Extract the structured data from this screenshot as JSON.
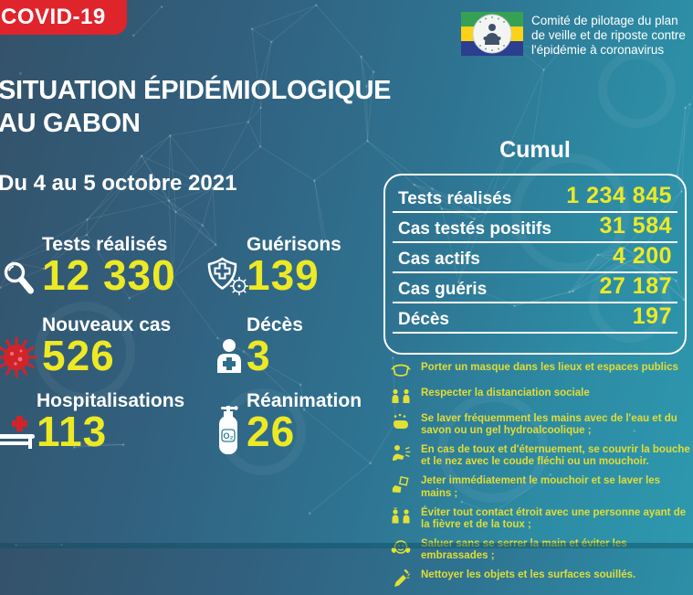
{
  "banner": {
    "label": "COVID-19"
  },
  "org": {
    "line1": "Comité de pilotage du plan",
    "line2": "de veille et de riposte contre",
    "line3": "l'épidémie à coronavirus",
    "flag": "gabon-flag"
  },
  "title": {
    "line1": "SITUATION ÉPIDÉMIOLOGIQUE",
    "line2": "AU GABON"
  },
  "period": "Du 4 au 5 octobre 2021",
  "daily_stats": [
    {
      "label": "Tests réalisés",
      "value": "12 330",
      "icon": "magnifier-icon"
    },
    {
      "label": "Guérisons",
      "value": "139",
      "icon": "shield-cross-virus-icon"
    },
    {
      "label": "Nouveaux cas",
      "value": "526",
      "icon": "virus-icon"
    },
    {
      "label": "Décès",
      "value": "3",
      "icon": "person-cross-icon"
    },
    {
      "label": "Hospitalisations",
      "value": "113",
      "icon": "hospital-bed-icon"
    },
    {
      "label": "Réanimation",
      "value": "26",
      "icon": "oxygen-tank-icon"
    }
  ],
  "cumulative": {
    "title": "Cumul",
    "rows": [
      {
        "label": "Tests réalisés",
        "value": "1 234 845"
      },
      {
        "label": "Cas testés positifs",
        "value": "31 584"
      },
      {
        "label": "Cas actifs",
        "value": "4 200"
      },
      {
        "label": "Cas guéris",
        "value": "27 187"
      },
      {
        "label": "Décès",
        "value": "197"
      }
    ]
  },
  "guidelines": [
    {
      "icon": "mask-icon",
      "text": "Porter un masque dans les lieux et espaces publics"
    },
    {
      "icon": "distancing-icon",
      "text": "Respecter la distanciation sociale"
    },
    {
      "icon": "wash-hands-icon",
      "text": "Se laver fréquemment les mains avec de l'eau et du savon ou un gel hydroalcoolique ;"
    },
    {
      "icon": "cough-elbow-icon",
      "text": "En cas de toux et d'éternuement, se couvrir la bouche et le nez avec le coude fléchi ou un mouchoir."
    },
    {
      "icon": "tissue-icon",
      "text": "Jeter immédiatement le mouchoir et se laver les mains ;"
    },
    {
      "icon": "avoid-contact-icon",
      "text": "Éviter tout contact étroit avec une personne ayant de la fièvre et de la toux ;"
    },
    {
      "icon": "greeting-icon",
      "text": "Saluer sans se serrer la main et éviter les embrassades ;"
    },
    {
      "icon": "clean-surfaces-icon",
      "text": "Nettoyer les objets et les surfaces souillés."
    }
  ],
  "colors": {
    "accent_yellow": "#EDE925",
    "banner_red": "#E0242C",
    "virus_red": "#D2232A",
    "text_white": "#FFFFFF",
    "background_left": "#34526A",
    "background_right": "#2D99AE",
    "flag_green": "#36A155",
    "flag_yellow": "#FCD116",
    "flag_blue": "#2C3E90"
  }
}
